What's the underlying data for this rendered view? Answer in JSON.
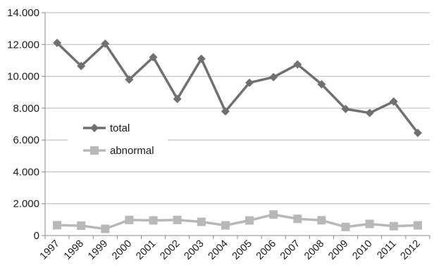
{
  "chart_data": {
    "type": "line",
    "categories": [
      "1997",
      "1998",
      "1999",
      "2000",
      "2001",
      "2002",
      "2003",
      "2004",
      "2005",
      "2006",
      "2007",
      "2008",
      "2009",
      "2010",
      "2011",
      "2012"
    ],
    "series": [
      {
        "name": "total",
        "color": "#707070",
        "marker": "diamond",
        "values": [
          12100,
          10650,
          12050,
          9800,
          11200,
          8580,
          11100,
          7800,
          9600,
          9950,
          10750,
          9500,
          7950,
          7700,
          8420,
          6450
        ]
      },
      {
        "name": "abnormal",
        "color": "#b8b8b8",
        "marker": "square",
        "values": [
          650,
          620,
          420,
          980,
          950,
          980,
          860,
          640,
          950,
          1320,
          1050,
          960,
          540,
          730,
          590,
          640
        ]
      }
    ],
    "ylim": [
      0,
      14000
    ],
    "yticks": [
      0,
      2000,
      4000,
      6000,
      8000,
      10000,
      12000,
      14000
    ],
    "ytick_labels": [
      "0",
      "2.000",
      "4.000",
      "6.000",
      "8.000",
      "10.000",
      "12.000",
      "14.000"
    ],
    "grid": "horizontal",
    "legend_position": "left, inside plot"
  }
}
